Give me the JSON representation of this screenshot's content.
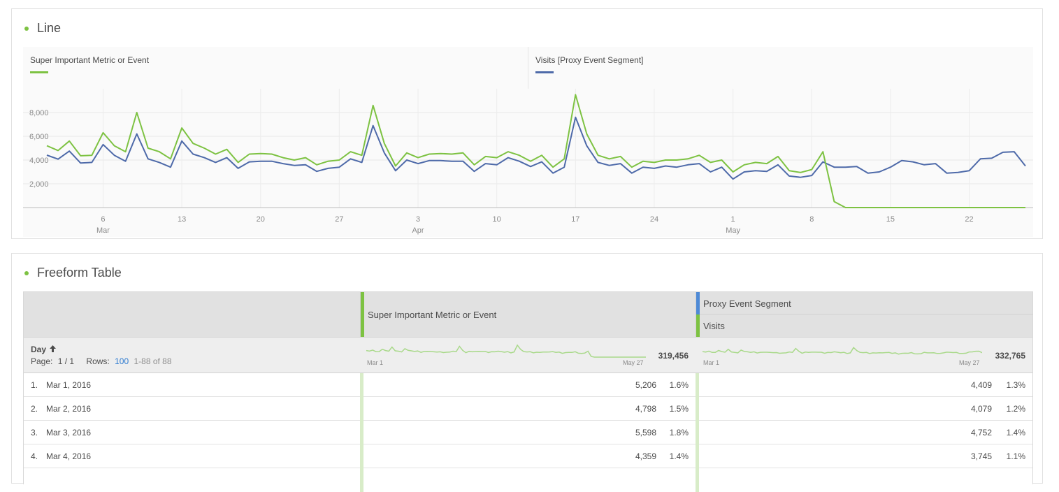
{
  "line_panel": {
    "title": "Line",
    "legend": [
      {
        "label": "Super Important Metric or Event",
        "color": "#7dc242"
      },
      {
        "label": "Visits [Proxy Event Segment]",
        "color": "#4e6aa9"
      }
    ],
    "chart_data": {
      "type": "line",
      "title": "",
      "y_ticks": [
        "8,000",
        "6,000",
        "4,000",
        "2,000"
      ],
      "y_tick_values": [
        8000,
        6000,
        4000,
        2000
      ],
      "ylim": [
        0,
        10000
      ],
      "x_ticks": [
        {
          "day": "6",
          "month": "Mar",
          "index": 5
        },
        {
          "day": "13",
          "month": "",
          "index": 12
        },
        {
          "day": "20",
          "month": "",
          "index": 19
        },
        {
          "day": "27",
          "month": "",
          "index": 26
        },
        {
          "day": "3",
          "month": "Apr",
          "index": 33
        },
        {
          "day": "10",
          "month": "",
          "index": 40
        },
        {
          "day": "17",
          "month": "",
          "index": 47
        },
        {
          "day": "24",
          "month": "",
          "index": 54
        },
        {
          "day": "1",
          "month": "May",
          "index": 61
        },
        {
          "day": "8",
          "month": "",
          "index": 68
        },
        {
          "day": "15",
          "month": "",
          "index": 75
        },
        {
          "day": "22",
          "month": "",
          "index": 82
        }
      ],
      "x_count": 88,
      "series": [
        {
          "name": "Super Important Metric or Event",
          "color": "#7dc242",
          "values": [
            5206,
            4798,
            5598,
            4359,
            4400,
            6300,
            5200,
            4700,
            8000,
            5000,
            4700,
            4100,
            6700,
            5400,
            5000,
            4500,
            4900,
            3800,
            4500,
            4550,
            4500,
            4200,
            4000,
            4200,
            3600,
            3900,
            4000,
            4700,
            4400,
            8600,
            5400,
            3500,
            4600,
            4200,
            4500,
            4550,
            4500,
            4600,
            3600,
            4300,
            4200,
            4700,
            4400,
            3900,
            4400,
            3400,
            4100,
            9500,
            6200,
            4400,
            4100,
            4300,
            3400,
            3900,
            3800,
            4000,
            4000,
            4100,
            4400,
            3800,
            4000,
            3000,
            3600,
            3800,
            3700,
            4300,
            3100,
            2950,
            3200,
            4700,
            500,
            0,
            0,
            0,
            0,
            0,
            0,
            0,
            0,
            0,
            0,
            0,
            0,
            0,
            0,
            0,
            0,
            0
          ]
        },
        {
          "name": "Visits [Proxy Event Segment]",
          "color": "#4e6aa9",
          "values": [
            4409,
            4079,
            4752,
            3745,
            3800,
            5300,
            4400,
            3900,
            6200,
            4100,
            3800,
            3400,
            5600,
            4500,
            4200,
            3800,
            4200,
            3300,
            3850,
            3900,
            3900,
            3700,
            3550,
            3600,
            3050,
            3300,
            3400,
            4100,
            3800,
            6900,
            4600,
            3100,
            4000,
            3700,
            3950,
            3950,
            3900,
            3900,
            3050,
            3700,
            3600,
            4200,
            3900,
            3450,
            3850,
            2900,
            3400,
            7600,
            5200,
            3800,
            3550,
            3700,
            2900,
            3400,
            3300,
            3500,
            3400,
            3600,
            3700,
            3000,
            3400,
            2400,
            3000,
            3100,
            3050,
            3600,
            2650,
            2550,
            2700,
            3850,
            3400,
            3400,
            3450,
            2900,
            3000,
            3400,
            3950,
            3850,
            3600,
            3700,
            2900,
            2950,
            3100,
            4100,
            4150,
            4650,
            4700,
            3500
          ]
        }
      ]
    }
  },
  "table_panel": {
    "title": "Freeform Table",
    "columns": [
      {
        "segment": "",
        "metric": "Super Important Metric or Event",
        "total": "319,456",
        "spark_start": "Mar 1",
        "spark_end": "May 27"
      },
      {
        "segment": "Proxy Event Segment",
        "metric": "Visits",
        "total": "332,765",
        "spark_start": "Mar 1",
        "spark_end": "May 27"
      }
    ],
    "dimension": {
      "label": "Day",
      "sort_icon": "arrow-up-icon",
      "page_label": "Page:",
      "page_value": "1 / 1",
      "rows_label": "Rows:",
      "rows_value": "100",
      "range": "1-88 of 88"
    },
    "rows": [
      {
        "index": "1.",
        "date": "Mar 1, 2016",
        "v1": "5,206",
        "p1": "1.6%",
        "v2": "4,409",
        "p2": "1.3%"
      },
      {
        "index": "2.",
        "date": "Mar 2, 2016",
        "v1": "4,798",
        "p1": "1.5%",
        "v2": "4,079",
        "p2": "1.2%"
      },
      {
        "index": "3.",
        "date": "Mar 3, 2016",
        "v1": "5,598",
        "p1": "1.8%",
        "v2": "4,752",
        "p2": "1.4%"
      },
      {
        "index": "4.",
        "date": "Mar 4, 2016",
        "v1": "4,359",
        "p1": "1.4%",
        "v2": "3,745",
        "p2": "1.1%"
      }
    ],
    "colors": {
      "green": "#7dc242",
      "blue": "#4e8ad6",
      "bar": "#d8ecc8"
    }
  }
}
